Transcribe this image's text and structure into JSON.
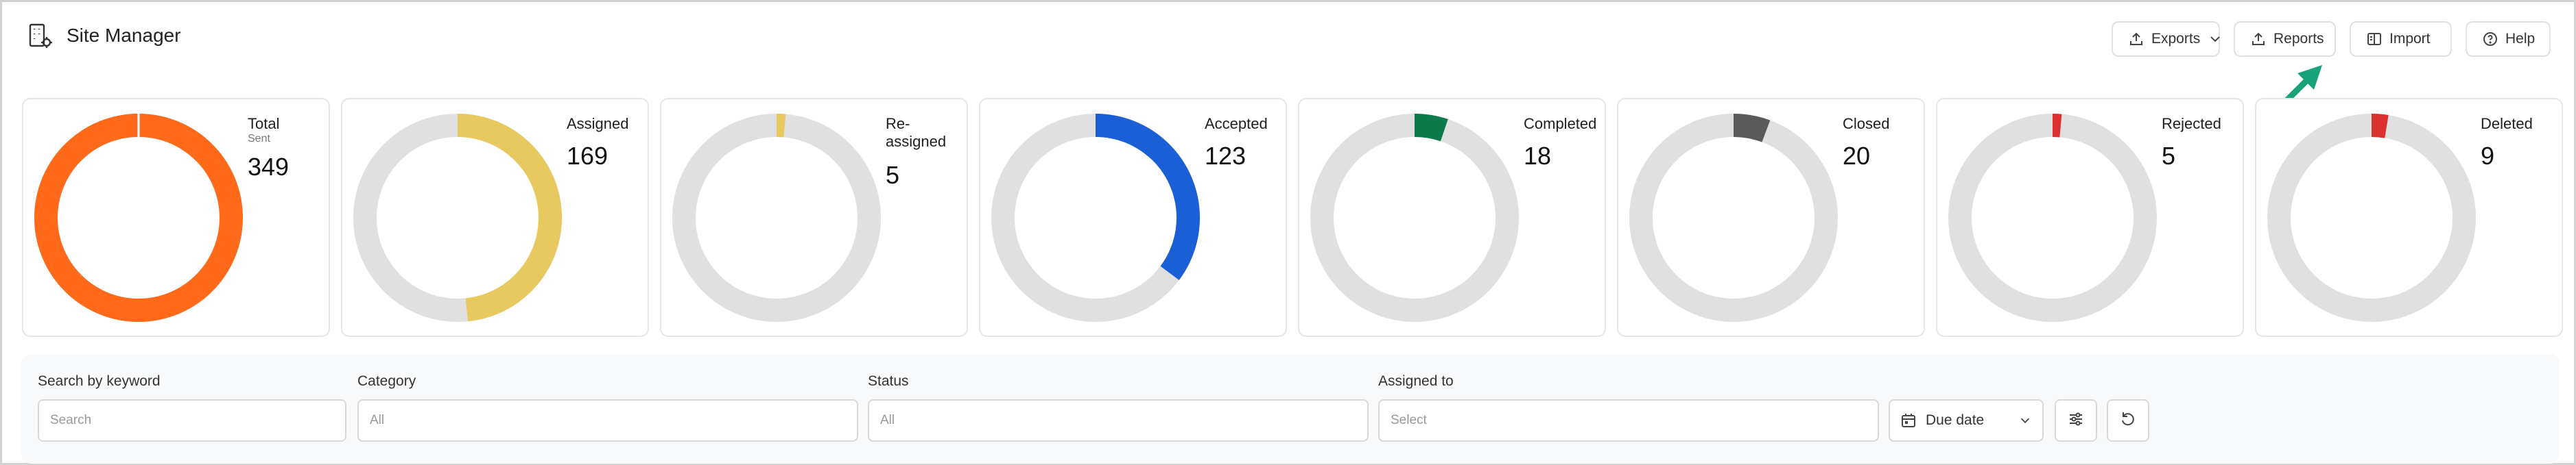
{
  "app": {
    "title": "Site Manager"
  },
  "toolbar": {
    "exports_label": "Exports",
    "reports_label": "Reports",
    "import_label": "Import",
    "help_label": "Help"
  },
  "stats": [
    {
      "label": "Total",
      "sublabel": "Sent",
      "value": "349",
      "fraction": 1.0,
      "color": "#ff6a1a"
    },
    {
      "label": "Assigned",
      "value": "169",
      "fraction": 0.484,
      "color": "#e8c960"
    },
    {
      "label": "Re-assigned",
      "value": "5",
      "fraction": 0.014,
      "color": "#e8c960"
    },
    {
      "label": "Accepted",
      "value": "123",
      "fraction": 0.352,
      "color": "#1a5fd6"
    },
    {
      "label": "Completed",
      "value": "18",
      "fraction": 0.052,
      "color": "#0a7a4a"
    },
    {
      "label": "Closed",
      "value": "20",
      "fraction": 0.057,
      "color": "#5a5a5a"
    },
    {
      "label": "Rejected",
      "value": "5",
      "fraction": 0.014,
      "color": "#dc2f2f"
    },
    {
      "label": "Deleted",
      "value": "9",
      "fraction": 0.026,
      "color": "#dc2f2f"
    }
  ],
  "filters": {
    "keyword": {
      "label": "Search by keyword",
      "placeholder": "Search"
    },
    "category": {
      "label": "Category",
      "value": "All"
    },
    "status": {
      "label": "Status",
      "value": "All"
    },
    "assigned": {
      "label": "Assigned to",
      "placeholder": "Select"
    },
    "due_date": {
      "label": "Due date"
    }
  },
  "colors": {
    "ring_track": "#e0e0e0",
    "accent_arrow": "#1aa37a"
  }
}
